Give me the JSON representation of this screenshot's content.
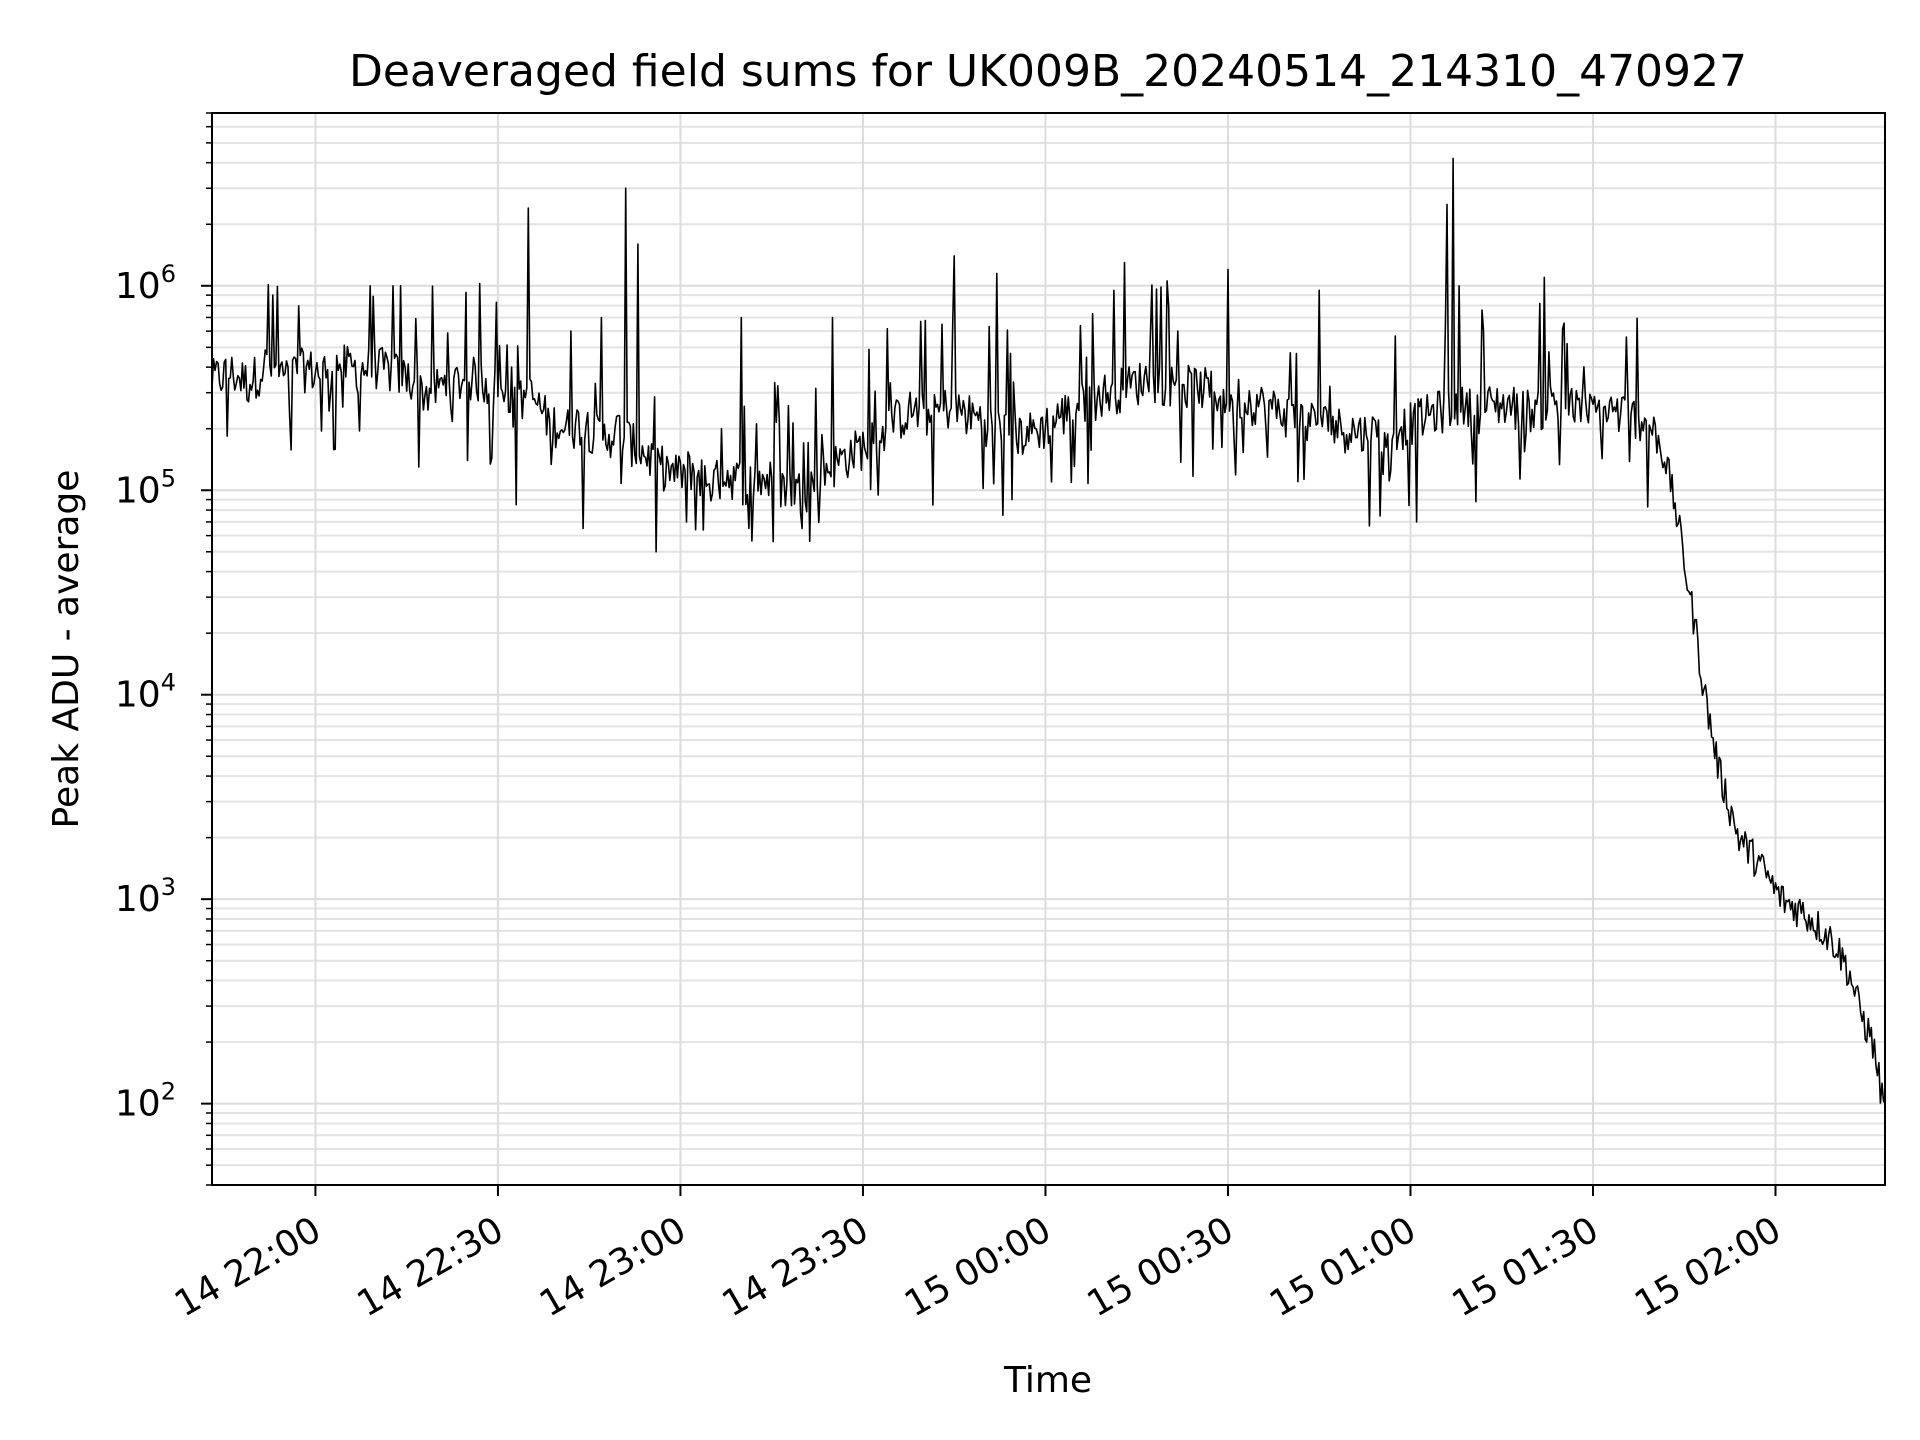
{
  "chart_data": {
    "type": "line",
    "title": "Deaveraged field sums for UK009B_20240514_214310_470927",
    "xlabel": "Time",
    "ylabel": "Peak ADU - average",
    "yscale": "log",
    "xlim": [
      "2024-05-14 21:43",
      "2024-05-15 02:18"
    ],
    "ylim": [
      40,
      7000000
    ],
    "x_ticks": [
      {
        "value": "2024-05-14 22:00",
        "label": "14 22:00"
      },
      {
        "value": "2024-05-14 22:30",
        "label": "14 22:30"
      },
      {
        "value": "2024-05-14 23:00",
        "label": "14 23:00"
      },
      {
        "value": "2024-05-14 23:30",
        "label": "14 23:30"
      },
      {
        "value": "2024-05-15 00:00",
        "label": "15 00:00"
      },
      {
        "value": "2024-05-15 00:30",
        "label": "15 00:30"
      },
      {
        "value": "2024-05-15 01:00",
        "label": "15 01:00"
      },
      {
        "value": "2024-05-15 01:30",
        "label": "15 01:30"
      },
      {
        "value": "2024-05-15 02:00",
        "label": "15 02:00"
      }
    ],
    "y_ticks": [
      {
        "value": 100,
        "base": "10",
        "exp": "2"
      },
      {
        "value": 1000,
        "base": "10",
        "exp": "3"
      },
      {
        "value": 10000,
        "base": "10",
        "exp": "4"
      },
      {
        "value": 100000,
        "base": "10",
        "exp": "5"
      },
      {
        "value": 1000000,
        "base": "10",
        "exp": "6"
      }
    ],
    "grid": true,
    "series": [
      {
        "color": "#000000",
        "points": [
          [
            "2024-05-14 21:43",
            350000
          ],
          [
            "2024-05-14 21:46",
            380000
          ],
          [
            "2024-05-14 21:49",
            340000
          ],
          [
            "2024-05-14 21:52",
            420000
          ],
          [
            "2024-05-14 21:55",
            360000
          ],
          [
            "2024-05-14 21:58",
            400000
          ],
          [
            "2024-05-14 22:01",
            380000
          ],
          [
            "2024-05-14 22:04",
            420000
          ],
          [
            "2024-05-14 22:07",
            390000
          ],
          [
            "2024-05-14 22:10",
            410000
          ],
          [
            "2024-05-14 22:13",
            380000
          ],
          [
            "2024-05-14 22:16",
            350000
          ],
          [
            "2024-05-14 22:18",
            300000
          ],
          [
            "2024-05-14 22:20",
            320000
          ],
          [
            "2024-05-14 22:23",
            340000
          ],
          [
            "2024-05-14 22:26",
            360000
          ],
          [
            "2024-05-14 22:29",
            330000
          ],
          [
            "2024-05-14 22:32",
            250000
          ],
          [
            "2024-05-14 22:35",
            300000
          ],
          [
            "2024-05-14 22:38",
            230000
          ],
          [
            "2024-05-14 22:41",
            200000
          ],
          [
            "2024-05-14 22:44",
            220000
          ],
          [
            "2024-05-14 22:47",
            180000
          ],
          [
            "2024-05-14 22:50",
            200000
          ],
          [
            "2024-05-14 22:53",
            160000
          ],
          [
            "2024-05-14 22:56",
            140000
          ],
          [
            "2024-05-14 22:59",
            120000
          ],
          [
            "2024-05-14 23:02",
            130000
          ],
          [
            "2024-05-14 23:05",
            110000
          ],
          [
            "2024-05-14 23:08",
            120000
          ],
          [
            "2024-05-14 23:11",
            110000
          ],
          [
            "2024-05-14 23:14",
            115000
          ],
          [
            "2024-05-14 23:17",
            105000
          ],
          [
            "2024-05-14 23:20",
            100000
          ],
          [
            "2024-05-14 23:23",
            120000
          ],
          [
            "2024-05-14 23:26",
            140000
          ],
          [
            "2024-05-14 23:29",
            160000
          ],
          [
            "2024-05-14 23:32",
            180000
          ],
          [
            "2024-05-14 23:35",
            220000
          ],
          [
            "2024-05-14 23:38",
            250000
          ],
          [
            "2024-05-14 23:41",
            230000
          ],
          [
            "2024-05-14 23:44",
            260000
          ],
          [
            "2024-05-14 23:47",
            240000
          ],
          [
            "2024-05-14 23:50",
            220000
          ],
          [
            "2024-05-14 23:53",
            200000
          ],
          [
            "2024-05-14 23:56",
            190000
          ],
          [
            "2024-05-14 23:59",
            200000
          ],
          [
            "2024-05-15 00:02",
            230000
          ],
          [
            "2024-05-15 00:05",
            260000
          ],
          [
            "2024-05-15 00:08",
            290000
          ],
          [
            "2024-05-15 00:11",
            310000
          ],
          [
            "2024-05-15 00:14",
            330000
          ],
          [
            "2024-05-15 00:17",
            360000
          ],
          [
            "2024-05-15 00:20",
            340000
          ],
          [
            "2024-05-15 00:23",
            330000
          ],
          [
            "2024-05-15 00:26",
            320000
          ],
          [
            "2024-05-15 00:29",
            300000
          ],
          [
            "2024-05-15 00:32",
            290000
          ],
          [
            "2024-05-15 00:35",
            270000
          ],
          [
            "2024-05-15 00:38",
            250000
          ],
          [
            "2024-05-15 00:41",
            230000
          ],
          [
            "2024-05-15 00:44",
            220000
          ],
          [
            "2024-05-15 00:47",
            210000
          ],
          [
            "2024-05-15 00:50",
            200000
          ],
          [
            "2024-05-15 00:53",
            190000
          ],
          [
            "2024-05-15 00:56",
            200000
          ],
          [
            "2024-05-15 00:59",
            210000
          ],
          [
            "2024-05-15 01:02",
            230000
          ],
          [
            "2024-05-15 01:05",
            250000
          ],
          [
            "2024-05-15 01:08",
            260000
          ],
          [
            "2024-05-15 01:11",
            250000
          ],
          [
            "2024-05-15 01:14",
            270000
          ],
          [
            "2024-05-15 01:17",
            260000
          ],
          [
            "2024-05-15 01:20",
            250000
          ],
          [
            "2024-05-15 01:23",
            270000
          ],
          [
            "2024-05-15 01:26",
            260000
          ],
          [
            "2024-05-15 01:29",
            240000
          ],
          [
            "2024-05-15 01:32",
            250000
          ],
          [
            "2024-05-15 01:35",
            240000
          ],
          [
            "2024-05-15 01:38",
            230000
          ],
          [
            "2024-05-15 01:40",
            200000
          ],
          [
            "2024-05-15 01:42",
            140000
          ],
          [
            "2024-05-15 01:43",
            100000
          ],
          [
            "2024-05-15 01:44",
            70000
          ],
          [
            "2024-05-15 01:45",
            45000
          ],
          [
            "2024-05-15 01:46",
            30000
          ],
          [
            "2024-05-15 01:47",
            20000
          ],
          [
            "2024-05-15 01:48",
            12000
          ],
          [
            "2024-05-15 01:49",
            8000
          ],
          [
            "2024-05-15 01:50",
            5500
          ],
          [
            "2024-05-15 01:51",
            4000
          ],
          [
            "2024-05-15 01:52",
            3200
          ],
          [
            "2024-05-15 01:53",
            2500
          ],
          [
            "2024-05-15 01:54",
            2000
          ],
          [
            "2024-05-15 01:56",
            1700
          ],
          [
            "2024-05-15 01:58",
            1400
          ],
          [
            "2024-05-15 02:00",
            1100
          ],
          [
            "2024-05-15 02:02",
            950
          ],
          [
            "2024-05-15 02:04",
            900
          ],
          [
            "2024-05-15 02:06",
            800
          ],
          [
            "2024-05-15 02:08",
            700
          ],
          [
            "2024-05-15 02:10",
            600
          ],
          [
            "2024-05-15 02:12",
            450
          ],
          [
            "2024-05-15 02:14",
            280
          ],
          [
            "2024-05-15 02:16",
            200
          ],
          [
            "2024-05-15 02:18",
            90
          ]
        ],
        "spikes": [
          [
            "2024-05-14 22:33",
            700000
          ],
          [
            "2024-05-14 22:35",
            2400000
          ],
          [
            "2024-05-14 22:42",
            600000
          ],
          [
            "2024-05-14 22:47",
            700000
          ],
          [
            "2024-05-14 22:51",
            3000000
          ],
          [
            "2024-05-14 22:53",
            1600000
          ],
          [
            "2024-05-14 22:56",
            50000
          ],
          [
            "2024-05-14 23:10",
            700000
          ],
          [
            "2024-05-14 23:25",
            700000
          ],
          [
            "2024-05-14 23:45",
            1400000
          ],
          [
            "2024-05-14 23:52",
            1150000
          ],
          [
            "2024-05-15 00:13",
            1300000
          ],
          [
            "2024-05-15 00:30",
            1200000
          ],
          [
            "2024-05-15 00:45",
            950000
          ],
          [
            "2024-05-15 01:06",
            2500000
          ],
          [
            "2024-05-15 01:07",
            4200000
          ],
          [
            "2024-05-15 01:01",
            70000
          ],
          [
            "2024-05-15 01:08",
            1000000
          ],
          [
            "2024-05-15 01:22",
            1100000
          ],
          [
            "2024-05-14 21:53",
            900000
          ],
          [
            "2024-05-14 22:09",
            1000000
          ],
          [
            "2024-05-14 22:14",
            1000000
          ],
          [
            "2024-05-14 22:17",
            130000
          ],
          [
            "2024-05-14 22:33",
            85000
          ],
          [
            "2024-05-14 22:44",
            65000
          ],
          [
            "2024-05-14 23:20",
            65000
          ],
          [
            "2024-05-15 00:01",
            110000
          ]
        ]
      }
    ]
  }
}
